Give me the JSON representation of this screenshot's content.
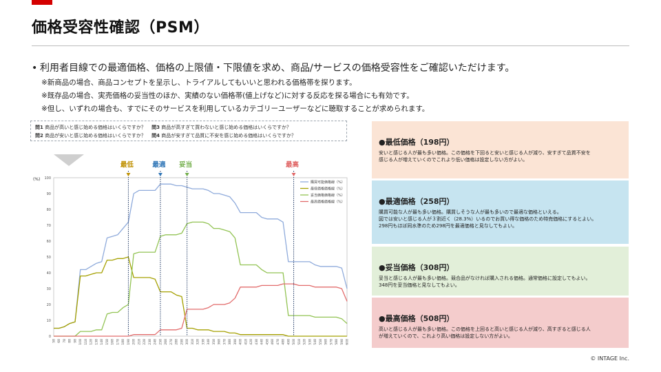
{
  "page": {
    "title": "価格受容性確認（PSM）",
    "intro": "利用者目線での最適価格、価格の上限値・下限値を求め、商品/サービスの価格受容性をご確認いただけます。",
    "notes": [
      "※新商品の場合、商品コンセプトを呈示し、トライアルしてもいいと思われる価格帯を探ります。",
      "※既存品の場合、実売価格の妥当性のほか、実績のない価格帯(値上げなど)に対する反応を探る場合にも有効です。",
      "※但し、いずれの場合も、すでにそのサービスを利用しているカテゴリーユーザーなどに聴取することが求められます。"
    ],
    "copyright": "© INTAGE Inc."
  },
  "questions": {
    "q1_label": "問1",
    "q1": "商品が高いと感じ始める価格はいくらですか？",
    "q3_label": "問3",
    "q3": "商品が高すぎて買わないと感じ始める価格はいくらですか？",
    "q2_label": "問2",
    "q2": "商品が安いと感じ始める価格はいくらですか？",
    "q4_label": "問4",
    "q4": "商品が安すぎて品質に不安を感じ始める価格はいくらですか？"
  },
  "panels": [
    {
      "title": "●最低価格（198円）",
      "lines": [
        "安いと感じる人が最も多い価格。この価格を下回ると安いと感じる人が減り、安すぎて品質不安を",
        "感じる人が増えていくのでこれより低い価格は設定しない方がよい。"
      ]
    },
    {
      "title": "●最適価格（258円）",
      "lines": [
        "購買可能な人が最も多い価格。購買しそうな人が最も多いので最適な価格といえる。",
        "図では安いと感じる人が３割近く（28.3%）いるのでお買い得な価格のため特売価格にするとよい。",
        "298円もほぼ同水準のため298円を最適価格と見なしてもよい。"
      ]
    },
    {
      "title": "●妥当価格（308円）",
      "lines": [
        "妥当と感じる人が最も多い価格。競合品がなければ購入される価格。通常価格に設定してもよい。",
        "348円を妥当価格と見なしてもよい。"
      ]
    },
    {
      "title": "●最高価格（508円）",
      "lines": [
        "高いと感じる人が最も多い価格。この価格を上回ると高いと感じる人が減り、高すぎると感じる人",
        "が増えていくので、これより高い価格は設定しない方がよい。"
      ]
    }
  ],
  "chart_data": {
    "type": "line",
    "ylabel": "(%)",
    "ylim": [
      0,
      100
    ],
    "yticks": [
      0,
      10,
      20,
      30,
      40,
      50,
      60,
      70,
      80,
      90,
      100
    ],
    "x": [
      58,
      68,
      78,
      88,
      98,
      108,
      118,
      128,
      138,
      148,
      158,
      168,
      178,
      188,
      198,
      208,
      218,
      228,
      238,
      248,
      258,
      268,
      278,
      288,
      298,
      308,
      318,
      328,
      338,
      348,
      358,
      368,
      378,
      388,
      398,
      408,
      418,
      428,
      438,
      448,
      458,
      468,
      478,
      488,
      498,
      508,
      518,
      528,
      538,
      548,
      558,
      568,
      578,
      588,
      598,
      608
    ],
    "xlim": [
      58,
      608
    ],
    "grid": false,
    "legend_position": "top-right",
    "series": [
      {
        "name": "購買可能価格線（%）",
        "color": "#8eaadb",
        "values": [
          5,
          5,
          6,
          8,
          9,
          42,
          42,
          44,
          46,
          47,
          62,
          63,
          64,
          68,
          72,
          90,
          92,
          92,
          92,
          92,
          96,
          96,
          96,
          95,
          95,
          94,
          93,
          93,
          93,
          92,
          90,
          90,
          89,
          88,
          84,
          78,
          78,
          78,
          78,
          75,
          74,
          74,
          74,
          72,
          47,
          47,
          47,
          47,
          47,
          45,
          44,
          44,
          44,
          44,
          43,
          30
        ]
      },
      {
        "name": "最低価格価格線（%）",
        "color": "#a5a000",
        "values": [
          5,
          5,
          6,
          8,
          9,
          38,
          38,
          39,
          40,
          40,
          48,
          48,
          49,
          49,
          50,
          37,
          37,
          37,
          37,
          36,
          28,
          28,
          28,
          26,
          25,
          5,
          5,
          4,
          4,
          4,
          3,
          3,
          3,
          2,
          2,
          1,
          1,
          1,
          1,
          1,
          1,
          1,
          1,
          1,
          0,
          0,
          0,
          0,
          0,
          0,
          0,
          0,
          0,
          0,
          0,
          0
        ]
      },
      {
        "name": "妥当価格価格線（%）",
        "color": "#92c353",
        "values": [
          0,
          0,
          0,
          0,
          0,
          3,
          3,
          3,
          4,
          4,
          14,
          15,
          15,
          18,
          20,
          52,
          53,
          53,
          53,
          53,
          63,
          64,
          64,
          64,
          65,
          71,
          72,
          72,
          72,
          71,
          68,
          68,
          67,
          66,
          62,
          45,
          45,
          45,
          45,
          42,
          40,
          40,
          40,
          40,
          13,
          13,
          13,
          13,
          13,
          12,
          12,
          12,
          12,
          12,
          11,
          8
        ]
      },
      {
        "name": "最高価格価格線（%）",
        "color": "#e26b6b",
        "values": [
          0,
          0,
          0,
          0,
          0,
          0,
          0,
          0,
          0,
          0,
          0,
          0,
          0,
          0,
          0,
          1,
          1,
          1,
          1,
          1,
          4,
          4,
          4,
          4,
          5,
          17,
          17,
          17,
          17,
          18,
          20,
          20,
          20,
          21,
          24,
          31,
          31,
          31,
          31,
          32,
          32,
          32,
          32,
          33,
          33,
          33,
          32,
          32,
          32,
          31,
          31,
          31,
          31,
          31,
          30,
          22
        ]
      }
    ],
    "markers": [
      {
        "label": "最低",
        "x": 198,
        "color": "#bf9000"
      },
      {
        "label": "最適",
        "x": 258,
        "color": "#2e75b6"
      },
      {
        "label": "妥当",
        "x": 308,
        "color": "#70ad47"
      },
      {
        "label": "最高",
        "x": 508,
        "color": "#e06666"
      }
    ]
  }
}
